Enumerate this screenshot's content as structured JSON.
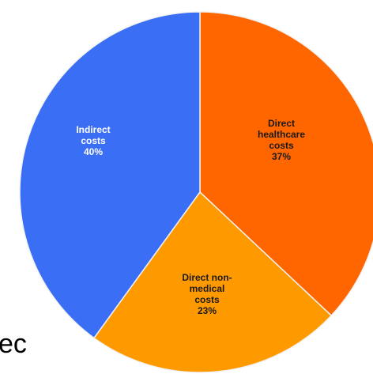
{
  "chart_data": {
    "type": "pie",
    "slices": [
      {
        "lines": [
          "Direct",
          "healthcare",
          "costs",
          "37%"
        ],
        "value": 37,
        "color": "#ff6600",
        "label_color": "#1a1a1a"
      },
      {
        "lines": [
          "Direct non-",
          "medical",
          "costs",
          "23%"
        ],
        "value": 23,
        "color": "#ff9900",
        "label_color": "#1a1a1a"
      },
      {
        "lines": [
          "Indirect",
          "costs",
          "40%"
        ],
        "value": 40,
        "color": "#3a6ef5",
        "label_color": "#ffffff"
      }
    ],
    "start_angle_deg": 0,
    "direction": "clockwise",
    "title": "",
    "legend": "none"
  },
  "cropped_text": "ec"
}
